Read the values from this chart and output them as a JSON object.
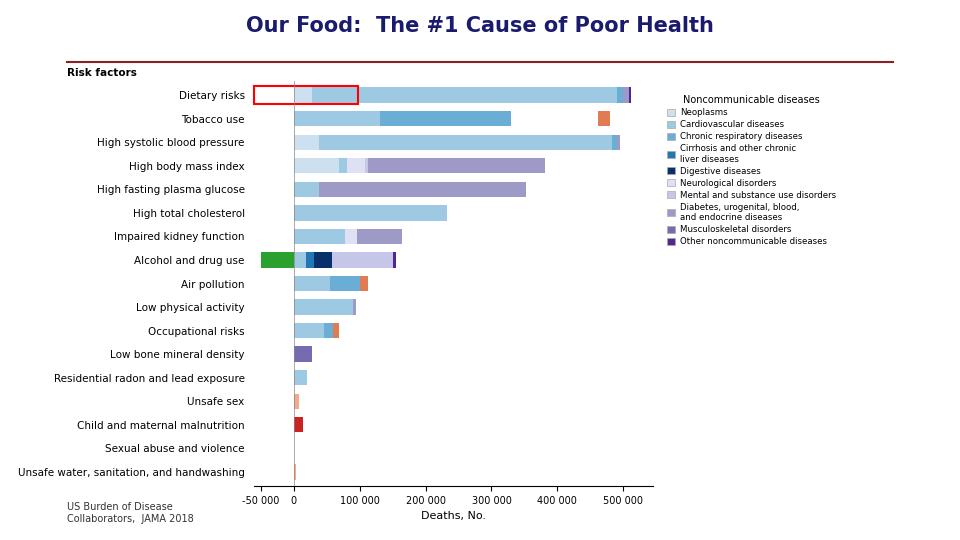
{
  "title": "Our Food:  The #1 Cause of Poor Health",
  "subtitle": "US Burden of Disease\nCollaborators,  JAMA 2018",
  "xlabel": "Deaths, No.",
  "categories": [
    "Dietary risks",
    "Tobacco use",
    "High systolic blood pressure",
    "High body mass index",
    "High fasting plasma glucose",
    "High total cholesterol",
    "Impaired kidney function",
    "Alcohol and drug use",
    "Air pollution",
    "Low physical activity",
    "Occupational risks",
    "Low bone mineral density",
    "Residential radon and lead exposure",
    "Unsafe sex",
    "Child and maternal malnutrition",
    "Sexual abuse and violence",
    "Unsafe water, sanitation, and handwashing"
  ],
  "legend_title": "Noncommunicable diseases",
  "legend_labels": [
    "Neoplasms",
    "Cardiovascular diseases",
    "Chronic respiratory diseases",
    "Cirrhosis and other chronic\nliver diseases",
    "Digestive diseases",
    "Neurological disorders",
    "Mental and substance use disorders",
    "Diabetes, urogenital, blood,\nand endocrine diseases",
    "Musculoskeletal disorders",
    "Other noncommunicable diseases"
  ],
  "legend_colors": [
    "#cce0f0",
    "#9ec9e2",
    "#6aaed6",
    "#2278b5",
    "#08306b",
    "#e0e0f5",
    "#c6c6e8",
    "#9e9ac8",
    "#756bb1",
    "#54278f"
  ],
  "title_color": "#1a1a6e",
  "bg_color": "#ffffff",
  "bar_height": 0.65,
  "xlim": [
    -60000,
    545000
  ],
  "xticks": [
    -50000,
    0,
    100000,
    200000,
    300000,
    400000,
    500000
  ],
  "xtick_labels": [
    "-50 000",
    "0",
    "100 000",
    "200 000",
    "300 000",
    "400 000",
    "500 000"
  ],
  "risk_factors_label": "Risk factors",
  "highlighted_category": "Dietary risks",
  "highlight_box_color": "red",
  "separator_line_color": "#8b2020",
  "green_bar_color": "#2ca02c",
  "red_bar_color": "#cc2222",
  "salmon_bar_color": "#f4a988",
  "orange_bar_color": "#e07b54"
}
